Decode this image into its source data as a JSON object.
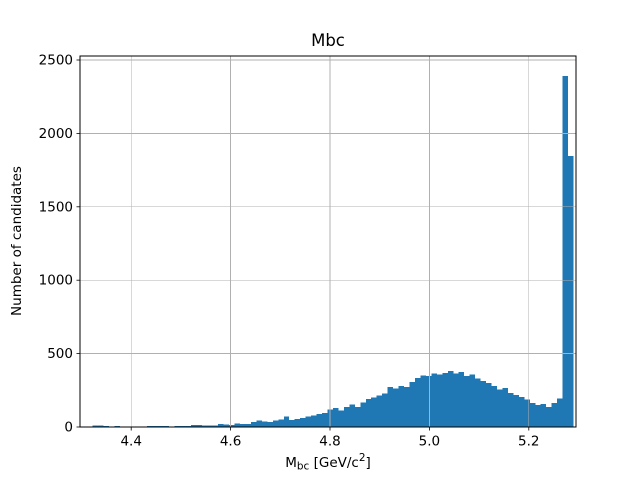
{
  "chart_data": {
    "type": "histogram",
    "title": "Mbc",
    "ylabel": "Number of candidates",
    "xlabel_parts": {
      "main": "M",
      "sub": "bc",
      "mid": " [GeV/c",
      "sup": "2",
      "end": "]"
    },
    "xlim": [
      4.297,
      5.295
    ],
    "ylim": [
      0,
      2527
    ],
    "grid": true,
    "legend": "none",
    "bar_color": "#1f77b4",
    "grid_color": "#b0b0b0",
    "spine_color": "#000000",
    "xticks": {
      "values": [
        4.4,
        4.6,
        4.8,
        5.0,
        5.2
      ],
      "labels": [
        "4.4",
        "4.6",
        "4.8",
        "5.0",
        "5.2"
      ]
    },
    "yticks": {
      "values": [
        0,
        500,
        1000,
        1500,
        2000,
        2500
      ],
      "labels": [
        "0",
        "500",
        "1000",
        "1500",
        "2000",
        "2500"
      ]
    },
    "bins": {
      "start": 4.3,
      "width": 0.011,
      "counts": [
        2,
        5,
        9,
        10,
        8,
        4,
        7,
        5,
        3,
        4,
        5,
        3,
        8,
        7,
        8,
        6,
        4,
        6,
        8,
        7,
        13,
        12,
        10,
        9,
        11,
        20,
        17,
        13,
        25,
        20,
        22,
        35,
        43,
        38,
        34,
        45,
        52,
        70,
        48,
        55,
        61,
        70,
        79,
        88,
        95,
        118,
        131,
        113,
        136,
        152,
        136,
        166,
        190,
        202,
        215,
        227,
        272,
        261,
        279,
        272,
        306,
        335,
        351,
        347,
        363,
        358,
        368,
        381,
        363,
        374,
        347,
        358,
        330,
        312,
        301,
        278,
        256,
        267,
        233,
        217,
        203,
        187,
        165,
        149,
        158,
        135,
        165,
        195,
        2390,
        1845
      ]
    }
  }
}
